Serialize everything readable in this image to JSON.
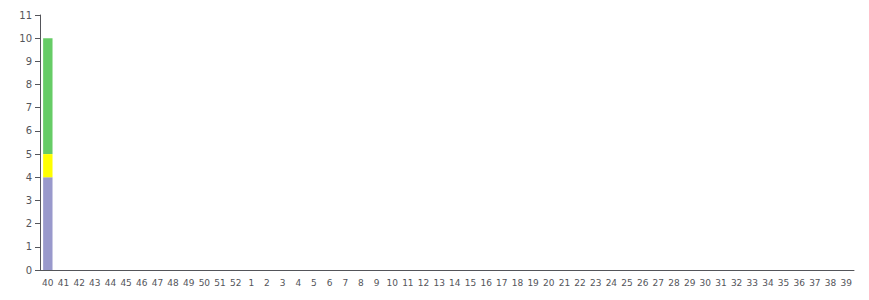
{
  "chart_data": {
    "type": "bar",
    "stacked": true,
    "grid": false,
    "categories": [
      "40",
      "41",
      "42",
      "43",
      "44",
      "45",
      "46",
      "47",
      "48",
      "49",
      "50",
      "51",
      "52",
      "1",
      "2",
      "3",
      "4",
      "5",
      "6",
      "7",
      "8",
      "9",
      "10",
      "11",
      "12",
      "13",
      "14",
      "15",
      "16",
      "17",
      "18",
      "19",
      "20",
      "21",
      "22",
      "23",
      "24",
      "25",
      "26",
      "27",
      "28",
      "29",
      "30",
      "31",
      "32",
      "33",
      "34",
      "35",
      "36",
      "37",
      "38",
      "39"
    ],
    "series": [
      {
        "color": "#9999cc",
        "values": [
          4,
          0,
          0,
          0,
          0,
          0,
          0,
          0,
          0,
          0,
          0,
          0,
          0,
          0,
          0,
          0,
          0,
          0,
          0,
          0,
          0,
          0,
          0,
          0,
          0,
          0,
          0,
          0,
          0,
          0,
          0,
          0,
          0,
          0,
          0,
          0,
          0,
          0,
          0,
          0,
          0,
          0,
          0,
          0,
          0,
          0,
          0,
          0,
          0,
          0,
          0,
          0
        ]
      },
      {
        "color": "#ffff00",
        "values": [
          1,
          0,
          0,
          0,
          0,
          0,
          0,
          0,
          0,
          0,
          0,
          0,
          0,
          0,
          0,
          0,
          0,
          0,
          0,
          0,
          0,
          0,
          0,
          0,
          0,
          0,
          0,
          0,
          0,
          0,
          0,
          0,
          0,
          0,
          0,
          0,
          0,
          0,
          0,
          0,
          0,
          0,
          0,
          0,
          0,
          0,
          0,
          0,
          0,
          0,
          0,
          0
        ]
      },
      {
        "color": "#66cc66",
        "values": [
          5,
          0,
          0,
          0,
          0,
          0,
          0,
          0,
          0,
          0,
          0,
          0,
          0,
          0,
          0,
          0,
          0,
          0,
          0,
          0,
          0,
          0,
          0,
          0,
          0,
          0,
          0,
          0,
          0,
          0,
          0,
          0,
          0,
          0,
          0,
          0,
          0,
          0,
          0,
          0,
          0,
          0,
          0,
          0,
          0,
          0,
          0,
          0,
          0,
          0,
          0,
          0
        ]
      }
    ],
    "ylim": [
      0,
      11
    ],
    "yticks": [
      0,
      1,
      2,
      3,
      4,
      5,
      6,
      7,
      8,
      9,
      10,
      11
    ]
  }
}
